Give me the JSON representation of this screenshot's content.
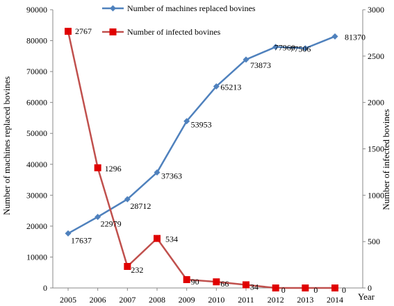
{
  "chart_data": {
    "type": "line",
    "x": [
      2005,
      2006,
      2007,
      2008,
      2009,
      2010,
      2011,
      2012,
      2013,
      2014
    ],
    "xlabel": "Year",
    "ylabel_left": "Number of machines replaced bovines",
    "ylabel_right": "Number of infected bovines",
    "ylim_left": [
      0,
      90000
    ],
    "ylim_right": [
      0,
      3000
    ],
    "yticks_left": [
      0,
      10000,
      20000,
      30000,
      40000,
      50000,
      60000,
      70000,
      80000,
      90000
    ],
    "yticks_right": [
      0,
      500,
      1000,
      1500,
      2000,
      2500,
      3000
    ],
    "grid": false,
    "legend_position": "top-center",
    "series": [
      {
        "name": "Number of machines replaced bovines",
        "axis": "left",
        "color": "#4F81BD",
        "marker": "diamond",
        "values": [
          17637,
          22979,
          28712,
          37363,
          53953,
          65213,
          73873,
          77960,
          77506,
          81370
        ],
        "labels": [
          "17637",
          "22979",
          "28712",
          "37363",
          "53953",
          "65213",
          "73873",
          "77960",
          "77506",
          "81370"
        ]
      },
      {
        "name": "Number of infected bovines",
        "axis": "right",
        "color": "#C0504D",
        "marker": "square",
        "values": [
          2767,
          1296,
          232,
          534,
          90,
          66,
          34,
          0,
          0,
          0
        ],
        "labels": [
          "2767",
          "1296",
          "232",
          "534",
          "90",
          "66",
          "34",
          "0",
          "0",
          "0"
        ]
      }
    ]
  }
}
